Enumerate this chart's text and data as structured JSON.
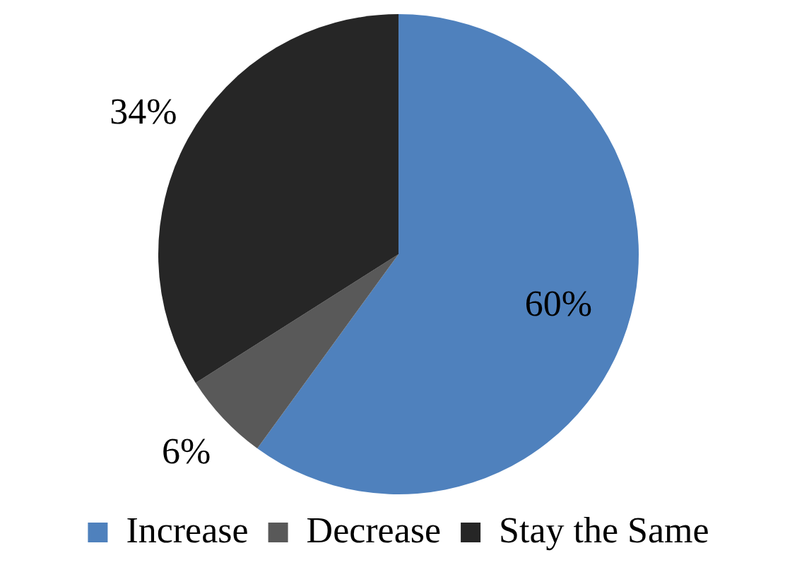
{
  "chart_data": {
    "type": "pie",
    "categories": [
      "Increase",
      "Decrease",
      "Stay the Same"
    ],
    "values": [
      60,
      6,
      34
    ],
    "colors": [
      "#4f81bd",
      "#595959",
      "#262626"
    ],
    "value_labels": [
      "60%",
      "6%",
      "34%"
    ],
    "legend": "bottom"
  }
}
